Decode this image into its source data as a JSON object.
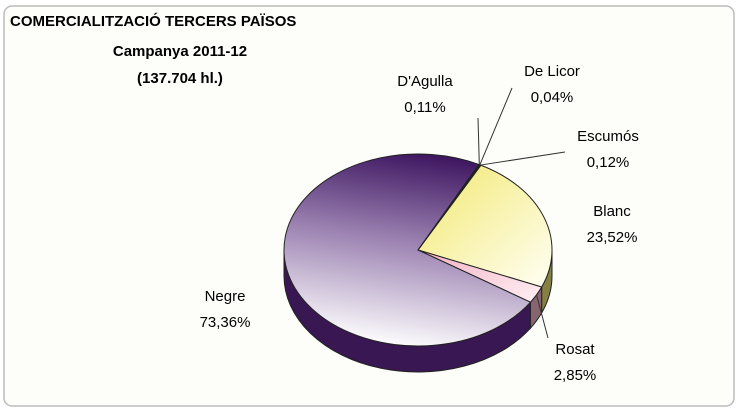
{
  "chart_data": {
    "type": "pie",
    "title": "COMERCIALITZACIÓ TERCERS PAÏSOS",
    "subtitle": [
      "Campanya 2011-12",
      "(137.704 hl.)"
    ],
    "categories": [
      "Blanc",
      "Rosat",
      "Negre",
      "D'Agulla",
      "De Licor",
      "Escumós"
    ],
    "values": [
      23.52,
      2.85,
      73.36,
      0.11,
      0.04,
      0.12
    ],
    "value_labels": [
      "23,52%",
      "2,85%",
      "73,36%",
      "0,11%",
      "0,04%",
      "0,12%"
    ],
    "colors": [
      "#f2ea7a",
      "#f4b8c8",
      "#4b1e6e",
      "#d8d0e0",
      "#d8d0e0",
      "#d8d0e0"
    ]
  }
}
